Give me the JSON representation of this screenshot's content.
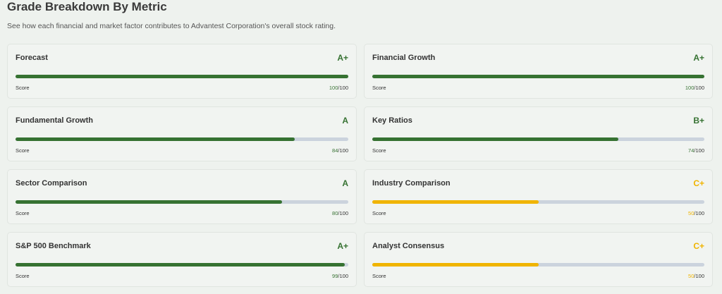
{
  "title": "Grade Breakdown By Metric",
  "subtitle": "See how each financial and market factor contributes to Advantest Corporation's overall stock rating.",
  "colors": {
    "green": "#367232",
    "yellow": "#f0b400",
    "track": "#cbd3dd"
  },
  "metrics": [
    {
      "label": "Forecast",
      "grade": "A+",
      "score": "100",
      "max": "/100",
      "score_label": "Score",
      "color": "green"
    },
    {
      "label": "Financial Growth",
      "grade": "A+",
      "score": "100",
      "max": "/100",
      "score_label": "Score",
      "color": "green"
    },
    {
      "label": "Fundamental Growth",
      "grade": "A",
      "score": "84",
      "max": "/100",
      "score_label": "Score",
      "color": "green"
    },
    {
      "label": "Key Ratios",
      "grade": "B+",
      "score": "74",
      "max": "/100",
      "score_label": "Score",
      "color": "green"
    },
    {
      "label": "Sector Comparison",
      "grade": "A",
      "score": "80",
      "max": "/100",
      "score_label": "Score",
      "color": "green"
    },
    {
      "label": "Industry Comparison",
      "grade": "C+",
      "score": "50",
      "max": "/100",
      "score_label": "Score",
      "color": "yellow"
    },
    {
      "label": "S&P 500 Benchmark",
      "grade": "A+",
      "score": "99",
      "max": "/100",
      "score_label": "Score",
      "color": "green"
    },
    {
      "label": "Analyst Consensus",
      "grade": "C+",
      "score": "50",
      "max": "/100",
      "score_label": "Score",
      "color": "yellow"
    }
  ]
}
